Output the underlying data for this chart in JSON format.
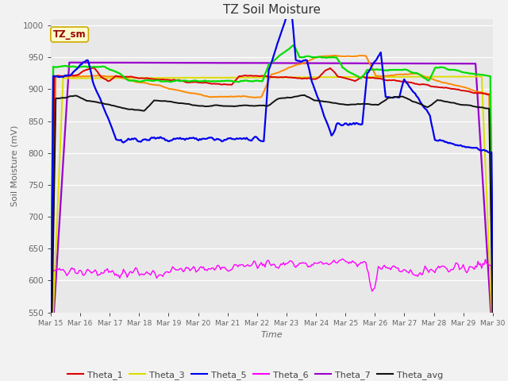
{
  "title": "TZ Soil Moisture",
  "xlabel": "Time",
  "ylabel": "Soil Moisture (mV)",
  "ylim": [
    550,
    1010
  ],
  "yticks": [
    550,
    600,
    650,
    700,
    750,
    800,
    850,
    900,
    950,
    1000
  ],
  "n_points": 360,
  "series_colors": {
    "Theta_1": "#dd0000",
    "Theta_2": "#ff8800",
    "Theta_3": "#dddd00",
    "Theta_4": "#00dd00",
    "Theta_5": "#0000ee",
    "Theta_6": "#ff00ff",
    "Theta_7": "#9900cc",
    "Theta_avg": "#111111"
  },
  "x_tick_labels": [
    "Mar 15",
    "Mar 16",
    "Mar 17",
    "Mar 18",
    "Mar 19",
    "Mar 20",
    "Mar 21",
    "Mar 22",
    "Mar 23",
    "Mar 24",
    "Mar 25",
    "Mar 26",
    "Mar 27",
    "Mar 28",
    "Mar 29",
    "Mar 30"
  ],
  "background_color": "#f2f2f2",
  "plot_bg_color": "#e8e8e8",
  "watermark_text": "TZ_sm",
  "watermark_bg": "#ffffcc",
  "watermark_border": "#ccaa00",
  "watermark_text_color": "#990000",
  "legend_fontsize": 8,
  "title_fontsize": 11,
  "tick_label_color": "#666666",
  "axis_label_color": "#666666"
}
